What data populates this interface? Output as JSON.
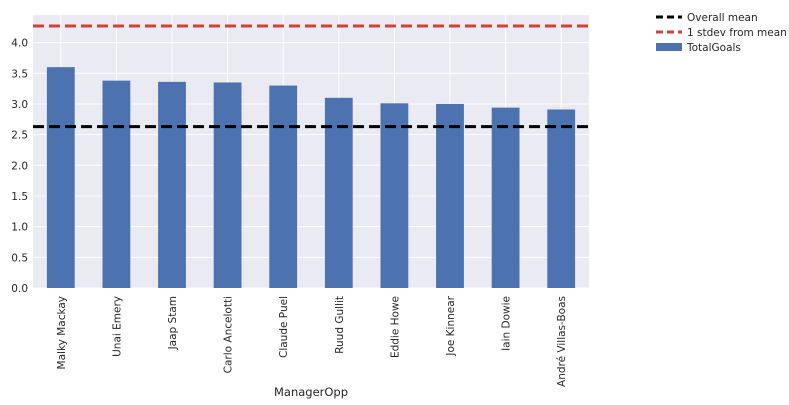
{
  "chart_data": {
    "type": "bar",
    "title": "",
    "xlabel": "ManagerOpp",
    "ylabel": "",
    "categories": [
      "Malky Mackay",
      "Unai Emery",
      "Jaap Stam",
      "Carlo Ancelotti",
      "Claude Puel",
      "Ruud Gullit",
      "Eddie Howe",
      "Joe Kinnear",
      "Iain Dowie",
      "André Villas-Boas"
    ],
    "series": [
      {
        "name": "TotalGoals",
        "values": [
          3.6,
          3.38,
          3.36,
          3.35,
          3.3,
          3.1,
          3.01,
          3.0,
          2.94,
          2.91
        ],
        "color": "#4c72b0"
      }
    ],
    "reference_lines": [
      {
        "name": "Overall mean",
        "value": 2.63,
        "color": "#000000",
        "style": "dashed"
      },
      {
        "name": "1 stdev from mean",
        "value": 4.27,
        "color": "#d43f3a",
        "style": "dashed"
      }
    ],
    "ylim": [
      0,
      4.45
    ],
    "yticks": [
      0.0,
      0.5,
      1.0,
      1.5,
      2.0,
      2.5,
      3.0,
      3.5,
      4.0
    ],
    "ytick_labels": [
      "0.0",
      "0.5",
      "1.0",
      "1.5",
      "2.0",
      "2.5",
      "3.0",
      "3.5",
      "4.0"
    ],
    "legend": {
      "placement": "outside-top-right",
      "entries": [
        "Overall mean",
        "1 stdev from mean",
        "TotalGoals"
      ]
    },
    "grid": true,
    "background": "#eaeaf2"
  }
}
